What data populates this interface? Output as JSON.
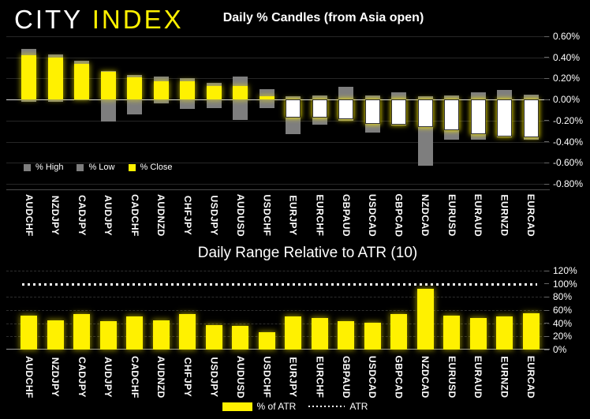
{
  "logo": {
    "primary": "CITY",
    "secondary": "INDEX"
  },
  "colors": {
    "background": "#000000",
    "brand_yellow": "#FFF100",
    "range_gray": "#7E7E7E",
    "negative_close_fill": "#FFFFFF",
    "text": "#FFFFFF"
  },
  "chart_data": [
    {
      "type": "bar",
      "subtype": "high-low-close-candles",
      "title": "Daily % Candles (from Asia open)",
      "categories": [
        "AUDCHF",
        "NZDJPY",
        "CADJPY",
        "AUDJPY",
        "CADCHF",
        "AUDNZD",
        "CHFJPY",
        "USDJPY",
        "AUDUSD",
        "USDCHF",
        "EURJPY",
        "EURCHF",
        "GBPAUD",
        "USDCAD",
        "GBPCAD",
        "NZDCAD",
        "EURUSD",
        "EURAUD",
        "EURNZD",
        "EURCAD"
      ],
      "series": [
        {
          "name": "% High",
          "color": "#7E7E7E",
          "values": [
            0.48,
            0.43,
            0.37,
            0.27,
            0.23,
            0.22,
            0.2,
            0.16,
            0.22,
            0.1,
            0.03,
            0.04,
            0.12,
            0.04,
            0.07,
            0.03,
            0.04,
            0.07,
            0.09,
            0.05
          ]
        },
        {
          "name": "% Low",
          "color": "#7E7E7E",
          "values": [
            -0.02,
            -0.02,
            -0.01,
            -0.21,
            -0.14,
            -0.04,
            -0.09,
            -0.08,
            -0.19,
            -0.08,
            -0.33,
            -0.24,
            -0.2,
            -0.31,
            -0.25,
            -0.63,
            -0.38,
            -0.38,
            -0.36,
            -0.38
          ]
        },
        {
          "name": "% Close",
          "color": "#FFF100",
          "negative_fill": "#FFFFFF",
          "values": [
            0.42,
            0.4,
            0.34,
            0.26,
            0.21,
            0.17,
            0.17,
            0.13,
            0.13,
            0.03,
            -0.17,
            -0.17,
            -0.19,
            -0.23,
            -0.24,
            -0.26,
            -0.29,
            -0.33,
            -0.35,
            -0.36
          ]
        }
      ],
      "xlabel": "",
      "ylabel": "",
      "ylim": [
        -0.8,
        0.6
      ],
      "y_ticks": {
        "values": [
          0.6,
          0.4,
          0.2,
          0.0,
          -0.2,
          -0.4,
          -0.6,
          -0.8
        ],
        "labels": [
          "0.60%",
          "0.40%",
          "0.20%",
          "0.00%",
          "-0.20%",
          "-0.40%",
          "-0.60%",
          "-0.80%"
        ]
      },
      "grid": "horizontal",
      "legend_position": "inside-bottom-left",
      "y_axis_side": "right"
    },
    {
      "type": "bar",
      "title": "Daily Range Relative to ATR (10)",
      "categories": [
        "AUDCHF",
        "NZDJPY",
        "CADJPY",
        "AUDJPY",
        "CADCHF",
        "AUDNZD",
        "CHFJPY",
        "USDJPY",
        "AUDUSD",
        "USDCHF",
        "EURJPY",
        "EURCHF",
        "GBPAUD",
        "USDCAD",
        "GBPCAD",
        "NZDCAD",
        "EURUSD",
        "EURAUD",
        "EURNZD",
        "EURCAD"
      ],
      "series": [
        {
          "name": "% of ATR",
          "color": "#FFF100",
          "values": [
            52,
            45,
            54,
            43,
            50,
            45,
            54,
            37,
            36,
            26,
            50,
            48,
            43,
            41,
            54,
            93,
            52,
            48,
            50,
            55
          ]
        }
      ],
      "reference_line": {
        "label": "ATR",
        "value": 100,
        "style": "dotted",
        "color": "#FFFFFF"
      },
      "xlabel": "",
      "ylabel": "",
      "ylim": [
        0,
        120
      ],
      "y_ticks": {
        "values": [
          120,
          100,
          80,
          60,
          40,
          20,
          0
        ],
        "labels": [
          "120%",
          "100%",
          "80%",
          "60%",
          "40%",
          "20%",
          "0%"
        ]
      },
      "grid": "horizontal-dashed",
      "legend_position": "below-center",
      "y_axis_side": "right"
    }
  ]
}
